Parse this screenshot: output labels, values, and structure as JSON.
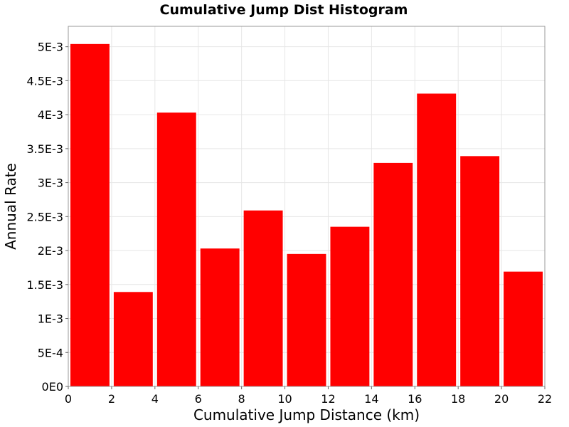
{
  "chart_data": {
    "type": "bar",
    "title": "Cumulative Jump Dist Histogram",
    "xlabel": "Cumulative Jump Distance (km)",
    "ylabel": "Annual Rate",
    "bin_width": 2,
    "bins": [
      {
        "x0": 0,
        "x1": 2,
        "value": 0.00504
      },
      {
        "x0": 2,
        "x1": 4,
        "value": 0.00139
      },
      {
        "x0": 4,
        "x1": 6,
        "value": 0.00403
      },
      {
        "x0": 6,
        "x1": 8,
        "value": 0.00203
      },
      {
        "x0": 8,
        "x1": 10,
        "value": 0.00259
      },
      {
        "x0": 10,
        "x1": 12,
        "value": 0.00195
      },
      {
        "x0": 12,
        "x1": 14,
        "value": 0.00235
      },
      {
        "x0": 14,
        "x1": 16,
        "value": 0.00329
      },
      {
        "x0": 16,
        "x1": 18,
        "value": 0.00431
      },
      {
        "x0": 18,
        "x1": 20,
        "value": 0.00339
      },
      {
        "x0": 20,
        "x1": 22,
        "value": 0.00169
      }
    ],
    "xlim": [
      0,
      22
    ],
    "ylim": [
      0,
      0.0053
    ],
    "x_ticks": [
      0,
      2,
      4,
      6,
      8,
      10,
      12,
      14,
      16,
      18,
      20,
      22
    ],
    "x_tick_labels": [
      "0",
      "2",
      "4",
      "6",
      "8",
      "10",
      "12",
      "14",
      "16",
      "18",
      "20",
      "22"
    ],
    "y_ticks": [
      0,
      0.0005,
      0.001,
      0.0015,
      0.002,
      0.0025,
      0.003,
      0.0035,
      0.004,
      0.0045,
      0.005
    ],
    "y_tick_labels": [
      "0E0",
      "5E-4",
      "1E-3",
      "1.5E-3",
      "2E-3",
      "2.5E-3",
      "3E-3",
      "3.5E-3",
      "4E-3",
      "4.5E-3",
      "5E-3"
    ],
    "grid": true,
    "legend": "none",
    "colors": {
      "bar": "#ff0000",
      "grid": "#e6e6e6",
      "frame": "#999999",
      "background": "#ffffff"
    }
  }
}
